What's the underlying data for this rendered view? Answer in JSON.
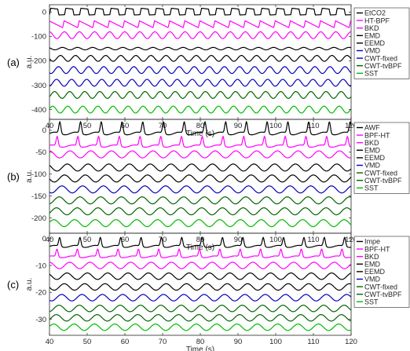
{
  "chart_data": [
    {
      "type": "line",
      "panel_label": "(a)",
      "xlabel": "Time (s)",
      "ylabel": "a.u.",
      "xlim": [
        40,
        120
      ],
      "ylim": [
        -440,
        30
      ],
      "xticks": [
        40,
        50,
        60,
        70,
        80,
        90,
        100,
        110,
        120
      ],
      "yticks": [
        0,
        -100,
        -200,
        -300,
        -400
      ],
      "period": 4.0,
      "series": [
        {
          "name": "EtCO2",
          "color": "#000000",
          "offset": 0,
          "amplitude": 12,
          "shape": "square"
        },
        {
          "name": "HT-BPF",
          "color": "#ff00ff",
          "offset": -50,
          "amplitude": 14,
          "shape": "sawtooth"
        },
        {
          "name": "BKD",
          "color": "#ff00ff",
          "offset": -95,
          "amplitude": 14,
          "shape": "sine"
        },
        {
          "name": "EMD",
          "color": "#000000",
          "offset": -150,
          "amplitude": 5,
          "shape": "sine"
        },
        {
          "name": "EEMD",
          "color": "#000000",
          "offset": -190,
          "amplitude": 12,
          "shape": "sine"
        },
        {
          "name": "VMD",
          "color": "#0000bb",
          "offset": -238,
          "amplitude": 14,
          "shape": "sine"
        },
        {
          "name": "CWT-fixed",
          "color": "#0000bb",
          "offset": -290,
          "amplitude": 14,
          "shape": "sine"
        },
        {
          "name": "CWT-tvBPF",
          "color": "#006400",
          "offset": -340,
          "amplitude": 14,
          "shape": "sine"
        },
        {
          "name": "SST",
          "color": "#00bb00",
          "offset": -400,
          "amplitude": 14,
          "shape": "sine"
        }
      ]
    },
    {
      "type": "line",
      "panel_label": "(b)",
      "xlabel": "Time (s)",
      "ylabel": "a.u.",
      "xlim": [
        40,
        120
      ],
      "ylim": [
        -235,
        25
      ],
      "xticks": [
        40,
        50,
        60,
        70,
        80,
        90,
        100,
        110,
        120
      ],
      "yticks": [
        0,
        -50,
        -100,
        -150,
        -200
      ],
      "period": 5.5,
      "series": [
        {
          "name": "AWF",
          "color": "#000000",
          "offset": 0,
          "amplitude": 12,
          "shape": "spike"
        },
        {
          "name": "BPF-HT",
          "color": "#ff00ff",
          "offset": -30,
          "amplitude": 10,
          "shape": "spike"
        },
        {
          "name": "BKD",
          "color": "#ff00ff",
          "offset": -55,
          "amplitude": 8,
          "shape": "sine"
        },
        {
          "name": "EMD",
          "color": "#000000",
          "offset": -85,
          "amplitude": 8,
          "shape": "sine"
        },
        {
          "name": "EEMD",
          "color": "#000000",
          "offset": -110,
          "amplitude": 8,
          "shape": "sine"
        },
        {
          "name": "VMD",
          "color": "#0000bb",
          "offset": -135,
          "amplitude": 8,
          "shape": "sine"
        },
        {
          "name": "CWT-fixed",
          "color": "#006400",
          "offset": -160,
          "amplitude": 8,
          "shape": "sine"
        },
        {
          "name": "CWT-tvBPF",
          "color": "#006400",
          "offset": -185,
          "amplitude": 8,
          "shape": "sine"
        },
        {
          "name": "SST",
          "color": "#00bb00",
          "offset": -212,
          "amplitude": 8,
          "shape": "sine"
        }
      ]
    },
    {
      "type": "line",
      "panel_label": "(c)",
      "xlabel": "Time (s)",
      "ylabel": "a.u.",
      "xlim": [
        40,
        120
      ],
      "ylim": [
        -36,
        2
      ],
      "xticks": [
        40,
        50,
        60,
        70,
        80,
        90,
        100,
        110,
        120
      ],
      "yticks": [
        0,
        -10,
        -20,
        -30
      ],
      "period": 5.4,
      "series": [
        {
          "name": "Impe",
          "color": "#000000",
          "offset": -2,
          "amplitude": 1.5,
          "shape": "spike"
        },
        {
          "name": "BPF-HT",
          "color": "#ff00ff",
          "offset": -6,
          "amplitude": 1.3,
          "shape": "spike"
        },
        {
          "name": "BKD",
          "color": "#ff00ff",
          "offset": -10,
          "amplitude": 1.2,
          "shape": "sine"
        },
        {
          "name": "EMD",
          "color": "#000000",
          "offset": -14,
          "amplitude": 1.2,
          "shape": "sine"
        },
        {
          "name": "EEMD",
          "color": "#000000",
          "offset": -18,
          "amplitude": 1.2,
          "shape": "sine"
        },
        {
          "name": "VMD",
          "color": "#0000bb",
          "offset": -22,
          "amplitude": 1.2,
          "shape": "sine"
        },
        {
          "name": "CWT-fixed",
          "color": "#006400",
          "offset": -26,
          "amplitude": 1.2,
          "shape": "sine"
        },
        {
          "name": "CWT-tvBPF",
          "color": "#006400",
          "offset": -29.5,
          "amplitude": 1.2,
          "shape": "sine"
        },
        {
          "name": "SST",
          "color": "#00bb00",
          "offset": -33,
          "amplitude": 1.2,
          "shape": "sine"
        }
      ]
    }
  ]
}
